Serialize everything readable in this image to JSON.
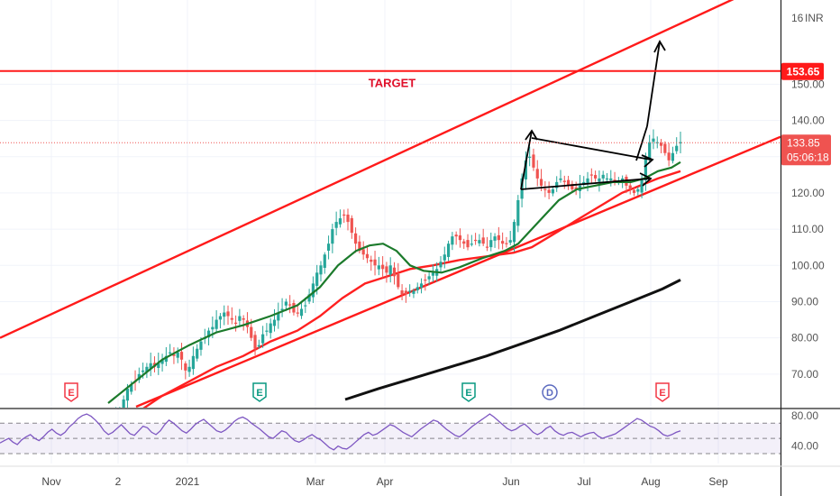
{
  "chart_data": [
    {
      "type": "candlestick",
      "currency": "INR",
      "ylim": [
        61,
        172
      ],
      "y_ticks": [
        "70.00",
        "80.00",
        "90.00",
        "100.00",
        "110.00",
        "120.00",
        "130.00",
        "140.00",
        "150.00"
      ],
      "top_tick_prefix": "16",
      "x_ticks": [
        "Nov",
        "2",
        "2021",
        "Mar",
        "Apr",
        "Jun",
        "Jul",
        "Aug",
        "Sep"
      ],
      "target": {
        "label": "TARGET",
        "value": 153.65,
        "value_label": "153.65",
        "color": "#ff1a1a"
      },
      "last_price": {
        "value": 133.85,
        "value_label": "133.85",
        "countdown": "05:06:18",
        "color": "#ef5350"
      },
      "closes": [
        52,
        55,
        58,
        60,
        63,
        66,
        67,
        68,
        70,
        71,
        72,
        73,
        72,
        73,
        74,
        75,
        76,
        75,
        76,
        74,
        71,
        72,
        75,
        77,
        79,
        80,
        82,
        83,
        85,
        86,
        87,
        86,
        85,
        84,
        86,
        85,
        83,
        80,
        77,
        78,
        81,
        82,
        84,
        85,
        87,
        88,
        90,
        89,
        87,
        87,
        88,
        89,
        92,
        95,
        98,
        100,
        103,
        106,
        110,
        112,
        113,
        114,
        112,
        109,
        106,
        104,
        103,
        102,
        101,
        100,
        100,
        99,
        98,
        100,
        97,
        94,
        92,
        92,
        93,
        93,
        94,
        95,
        96,
        97,
        98,
        99,
        101,
        103,
        106,
        108,
        108,
        107,
        106,
        105,
        106,
        107,
        107,
        106,
        105,
        107,
        108,
        107,
        106,
        106,
        107,
        112,
        118,
        124,
        129,
        130,
        127,
        124,
        122,
        121,
        120,
        121,
        123,
        124,
        123,
        122,
        121,
        121,
        122,
        123,
        124,
        125,
        124,
        124,
        125,
        124,
        124,
        123,
        123,
        124,
        122,
        121,
        120,
        121,
        124,
        130,
        134,
        135,
        134,
        133,
        131,
        129,
        131,
        133,
        134
      ],
      "channel_upper": [
        [
          0,
          80.0
        ],
        [
          866,
          179.5
        ]
      ],
      "channel_lower": [
        [
          151,
          61.0
        ],
        [
          866,
          135.5
        ]
      ],
      "ma_green": [
        [
          120,
          62
        ],
        [
          150,
          68
        ],
        [
          180,
          74
        ],
        [
          210,
          78
        ],
        [
          240,
          81.5
        ],
        [
          270,
          83.5
        ],
        [
          300,
          86
        ],
        [
          330,
          89
        ],
        [
          355,
          94
        ],
        [
          375,
          100
        ],
        [
          395,
          104
        ],
        [
          410,
          105.5
        ],
        [
          425,
          106
        ],
        [
          440,
          104
        ],
        [
          455,
          100
        ],
        [
          470,
          98.5
        ],
        [
          490,
          98
        ],
        [
          510,
          99.5
        ],
        [
          535,
          102
        ],
        [
          560,
          104
        ],
        [
          575,
          106
        ],
        [
          590,
          110
        ],
        [
          605,
          114
        ],
        [
          620,
          118
        ],
        [
          640,
          121
        ],
        [
          660,
          122
        ],
        [
          680,
          123
        ],
        [
          700,
          123
        ],
        [
          715,
          124
        ],
        [
          730,
          126
        ],
        [
          745,
          127
        ],
        [
          755,
          128.5
        ]
      ],
      "ma_red": [
        [
          150,
          59
        ],
        [
          180,
          64
        ],
        [
          210,
          68
        ],
        [
          240,
          72
        ],
        [
          270,
          75
        ],
        [
          300,
          79
        ],
        [
          330,
          82
        ],
        [
          355,
          86
        ],
        [
          380,
          91
        ],
        [
          405,
          95
        ],
        [
          430,
          97
        ],
        [
          455,
          99
        ],
        [
          480,
          100
        ],
        [
          510,
          101.5
        ],
        [
          540,
          102.5
        ],
        [
          570,
          103.5
        ],
        [
          590,
          105
        ],
        [
          610,
          108
        ],
        [
          630,
          111
        ],
        [
          650,
          114
        ],
        [
          670,
          117
        ],
        [
          690,
          120
        ],
        [
          710,
          122
        ],
        [
          730,
          124
        ],
        [
          755,
          126
        ]
      ],
      "ma_black": [
        [
          383,
          63
        ],
        [
          420,
          66
        ],
        [
          460,
          69
        ],
        [
          500,
          72
        ],
        [
          540,
          75
        ],
        [
          580,
          78.5
        ],
        [
          620,
          82
        ],
        [
          660,
          86
        ],
        [
          700,
          90
        ],
        [
          735,
          93.5
        ],
        [
          755,
          96
        ]
      ],
      "events": [
        {
          "label": "E",
          "kind": "earnings-negative",
          "color": "#f23645"
        },
        {
          "label": "E",
          "kind": "earnings-positive",
          "color": "#089981"
        },
        {
          "label": "E",
          "kind": "earnings-positive",
          "color": "#089981"
        },
        {
          "label": "D",
          "kind": "dividend",
          "color": "#5b6abf"
        },
        {
          "label": "E",
          "kind": "earnings-negative",
          "color": "#f23645"
        }
      ],
      "colors": {
        "up": "#26a69a",
        "down": "#ef5350",
        "channel": "#ff1a1a",
        "ma_fast": "#1b7a2b",
        "ma_mid": "#ff2020",
        "ma_slow": "#111111",
        "drawing": "#000000"
      }
    },
    {
      "type": "line",
      "name": "rsi",
      "ylim": [
        17,
        88
      ],
      "y_ticks": [
        "40.00",
        "80.00"
      ],
      "band": [
        30,
        70
      ],
      "color": "#7e57c2",
      "values": [
        44,
        47,
        50,
        45,
        42,
        48,
        52,
        55,
        50,
        47,
        52,
        58,
        62,
        57,
        54,
        58,
        65,
        70,
        76,
        80,
        82,
        79,
        74,
        68,
        60,
        55,
        58,
        63,
        68,
        62,
        56,
        54,
        60,
        66,
        64,
        58,
        55,
        60,
        68,
        74,
        70,
        65,
        60,
        57,
        62,
        68,
        72,
        75,
        70,
        65,
        60,
        58,
        61,
        66,
        72,
        76,
        78,
        75,
        70,
        66,
        62,
        57,
        52,
        50,
        55,
        60,
        58,
        52,
        47,
        45,
        48,
        52,
        55,
        51,
        48,
        43,
        38,
        35,
        40,
        37,
        36,
        40,
        45,
        50,
        55,
        58,
        54,
        56,
        60,
        64,
        68,
        66,
        62,
        58,
        55,
        52,
        57,
        62,
        66,
        70,
        74,
        72,
        67,
        62,
        58,
        54,
        52,
        56,
        61,
        66,
        70,
        74,
        78,
        82,
        78,
        73,
        68,
        63,
        60,
        62,
        66,
        69,
        64,
        58,
        55,
        58,
        63,
        66,
        60,
        56,
        54,
        57,
        58,
        55,
        52,
        55,
        57,
        58,
        53,
        50,
        52,
        54,
        56,
        60,
        64,
        68,
        72,
        76,
        74,
        70,
        66,
        64,
        60,
        55,
        53,
        55,
        58,
        60
      ]
    }
  ]
}
